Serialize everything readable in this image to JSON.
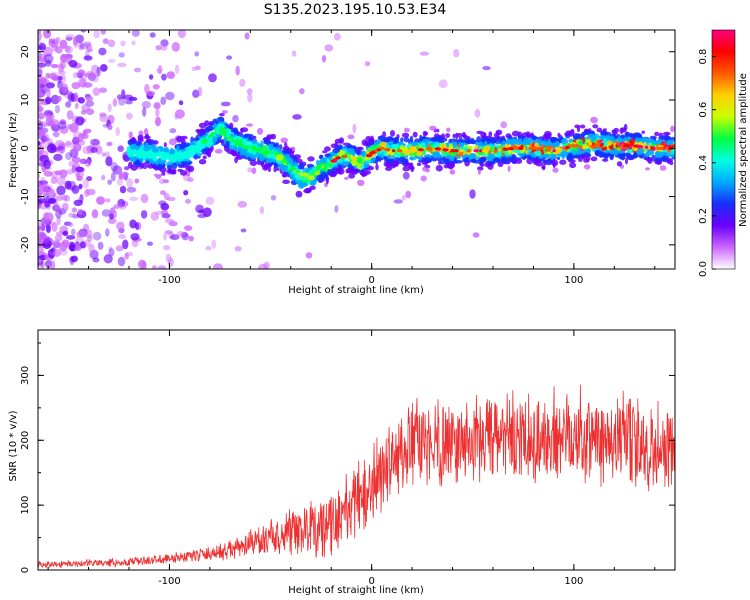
{
  "title": "S135.2023.195.10.53.E34",
  "chart_data": [
    {
      "type": "heatmap",
      "xlabel": "Height of straight line (km)",
      "ylabel": "Frequency (Hz)",
      "xlim": [
        -165,
        150
      ],
      "ylim": [
        -25,
        24.5
      ],
      "xticks": [
        -100,
        0,
        100
      ],
      "yticks": [
        -20,
        -10,
        0,
        10,
        20
      ],
      "colorbar": {
        "label": "Normalized spectral amplitude",
        "range": [
          0,
          0.9
        ],
        "ticks": [
          "0.0",
          "0.2",
          "0.4",
          "0.6",
          "0.8"
        ],
        "colors": [
          "#ffffff",
          "#cc66ff",
          "#6a00ff",
          "#1a2dff",
          "#00aaff",
          "#00ffe0",
          "#00ff40",
          "#c8ff00",
          "#ffd000",
          "#ff5a00",
          "#ff0000",
          "#ff0080"
        ]
      },
      "ridge": {
        "x": [
          -120,
          -110,
          -100,
          -90,
          -80,
          -75,
          -70,
          -60,
          -50,
          -45,
          -40,
          -35,
          -30,
          -25,
          -20,
          -15,
          -10,
          -5,
          0,
          5,
          10,
          20,
          30,
          40,
          50,
          60,
          70,
          80,
          90,
          100,
          110,
          120,
          130,
          140,
          150
        ],
        "y": [
          -1,
          -1,
          -2,
          -1,
          2,
          4.5,
          2,
          0,
          -1,
          -2,
          -4,
          -6,
          -6,
          -4,
          -3,
          -1.5,
          -2,
          -3,
          -1,
          0,
          -0.5,
          -0.5,
          0,
          -0.5,
          -0.5,
          -0.5,
          0,
          0,
          -0.5,
          0.5,
          1,
          0.5,
          0.5,
          0,
          0
        ]
      }
    },
    {
      "type": "line",
      "xlabel": "Height of straight line (km)",
      "ylabel": "SNR (10 * v/v)",
      "xlim": [
        -165,
        150
      ],
      "ylim": [
        0,
        370
      ],
      "xticks": [
        -100,
        0,
        100
      ],
      "yticks": [
        0,
        100,
        200,
        300
      ],
      "series": [
        {
          "color": "#ee3030",
          "envelope_x": [
            -165,
            -150,
            -120,
            -100,
            -80,
            -70,
            -60,
            -50,
            -40,
            -30,
            -20,
            -15,
            -10,
            0,
            10,
            20,
            30,
            40,
            50,
            60,
            80,
            100,
            110,
            120,
            140,
            150
          ],
          "envelope_mean": [
            8,
            10,
            12,
            18,
            25,
            30,
            40,
            50,
            55,
            60,
            70,
            85,
            100,
            130,
            170,
            190,
            200,
            195,
            200,
            205,
            195,
            215,
            200,
            205,
            185,
            200
          ],
          "envelope_spread": [
            5,
            5,
            6,
            8,
            10,
            15,
            20,
            25,
            35,
            45,
            50,
            50,
            55,
            60,
            60,
            65,
            65,
            65,
            65,
            65,
            70,
            75,
            75,
            70,
            70,
            70
          ]
        }
      ]
    }
  ]
}
